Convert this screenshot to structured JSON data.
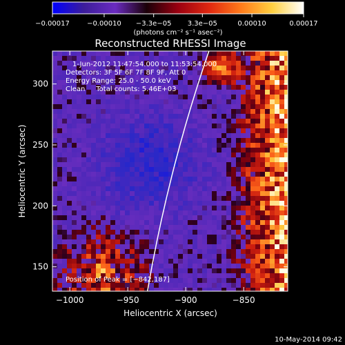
{
  "chart_data": {
    "type": "heatmap",
    "title": "Reconstructed RHESSI Image",
    "xlabel": "Heliocentric X (arcsec)",
    "ylabel": "Heliocentric Y (arcsec)",
    "xlim": [
      -1015,
      -812
    ],
    "ylim": [
      130,
      327
    ],
    "x_ticks": [
      -1000,
      -950,
      -900,
      -850
    ],
    "x_tick_labels": [
      "−1000",
      "−950",
      "−900",
      "−850"
    ],
    "y_ticks": [
      150,
      200,
      250,
      300
    ],
    "y_tick_labels": [
      "150",
      "200",
      "250",
      "300"
    ],
    "grid": false,
    "colorbar": {
      "range": [
        -0.00017,
        0.00017
      ],
      "ticks": [
        -0.00017,
        -0.0001,
        -3.3e-05,
        3.3e-05,
        0.0001,
        0.00017
      ],
      "tick_labels": [
        "−0.00017",
        "−0.00010",
        "−3.3e−05",
        "3.3e−05",
        "0.00010",
        "0.00017"
      ],
      "units_label": "(photons cm⁻² s⁻¹ asec⁻²)",
      "colors": [
        "#0000ff",
        "#3c1d9a",
        "#6a2bc0",
        "#1a0008",
        "#9a0010",
        "#e02810",
        "#ff7a1a",
        "#ffd040",
        "#ffffff"
      ]
    },
    "annotations": [
      "1-Jun-2012 11:47:54.000 to 11:53:54.000",
      "Detectors: 3F 5F 6F 7F 8F 9F, Att 0",
      "Energy Range: 25.0 - 50.0 keV",
      "Clean     Total counts: 5.46E+03"
    ],
    "peak_label": "Position of Peak = [−842,187]",
    "limb_line": true,
    "footer": "10-May-2014 09:42"
  }
}
